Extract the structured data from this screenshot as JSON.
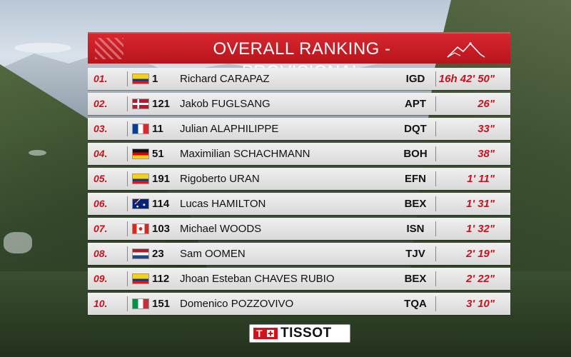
{
  "title": "OVERALL RANKING - PROVISIONAL",
  "sponsor": "TISSOT",
  "colors": {
    "accent": "#c8121c",
    "title_bar": "#c81a22",
    "row_bg": "#e4e4e4"
  },
  "rows": [
    {
      "pos": "01.",
      "flag": "ecuador-flag",
      "bib": "1",
      "name": "Richard CARAPAZ",
      "team": "IGD",
      "time": "16h 42' 50\""
    },
    {
      "pos": "02.",
      "flag": "denmark-flag",
      "bib": "121",
      "name": "Jakob FUGLSANG",
      "team": "APT",
      "time": "26\""
    },
    {
      "pos": "03.",
      "flag": "france-flag",
      "bib": "11",
      "name": "Julian ALAPHILIPPE",
      "team": "DQT",
      "time": "33\""
    },
    {
      "pos": "04.",
      "flag": "germany-flag",
      "bib": "51",
      "name": "Maximilian SCHACHMANN",
      "team": "BOH",
      "time": "38\""
    },
    {
      "pos": "05.",
      "flag": "colombia-flag",
      "bib": "191",
      "name": "Rigoberto URAN",
      "team": "EFN",
      "time": "1' 11\""
    },
    {
      "pos": "06.",
      "flag": "australia-flag",
      "bib": "114",
      "name": "Lucas HAMILTON",
      "team": "BEX",
      "time": "1' 31\""
    },
    {
      "pos": "07.",
      "flag": "canada-flag",
      "bib": "103",
      "name": "Michael WOODS",
      "team": "ISN",
      "time": "1' 32\""
    },
    {
      "pos": "08.",
      "flag": "netherlands-flag",
      "bib": "23",
      "name": "Sam OOMEN",
      "team": "TJV",
      "time": "2' 19\""
    },
    {
      "pos": "09.",
      "flag": "colombia-flag",
      "bib": "112",
      "name": "Jhoan Esteban CHAVES RUBIO",
      "team": "BEX",
      "time": "2' 22\""
    },
    {
      "pos": "10.",
      "flag": "italy-flag",
      "bib": "151",
      "name": "Domenico POZZOVIVO",
      "team": "TQA",
      "time": "3' 10\""
    }
  ]
}
